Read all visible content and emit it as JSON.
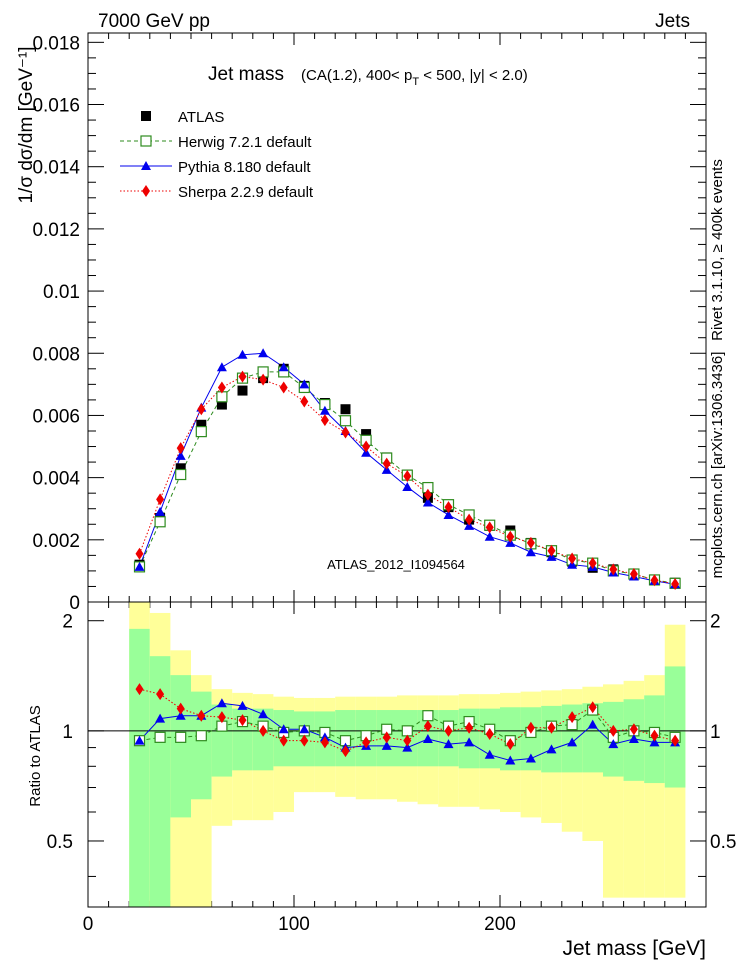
{
  "header": {
    "left": "7000 GeV pp",
    "right": "Jets"
  },
  "side_labels": {
    "rivet": "Rivet 3.1.10, ≥ 400k events",
    "mcplots": "mcplots.cern.ch [arXiv:1306.3436]"
  },
  "colors": {
    "atlas": "#000000",
    "herwig": "#2e8b1e",
    "pythia": "#0000ee",
    "sherpa": "#ee0000",
    "band_1sigma": "#99ff99",
    "band_2sigma": "#ffff99",
    "watermark": "#888888"
  },
  "chart_data": {
    "type": "line",
    "title_main": "Jet mass",
    "title_sub": "(CA(1.2), 400< p",
    "title_sub_T": "T",
    "title_sub_rest": " < 500, |y| < 2.0)",
    "watermark": "ATLAS_2012_I1094564",
    "xlabel": "Jet mass [GeV]",
    "ylabel": "1/σ dσ/dm [GeV⁻¹]",
    "ratio_ylabel": "Ratio to ATLAS",
    "xlim": [
      0,
      300
    ],
    "ylim": [
      0,
      0.0183
    ],
    "ratio_ylim": [
      0.33,
      2.25
    ],
    "x_ticks": [
      "0",
      "100",
      "200"
    ],
    "x_tick_values": [
      0,
      100,
      200
    ],
    "y_ticks": [
      "0",
      "0.002",
      "0.004",
      "0.006",
      "0.008",
      "0.01",
      "0.012",
      "0.014",
      "0.016",
      "0.018"
    ],
    "y_tick_values": [
      0,
      0.002,
      0.004,
      0.006,
      0.008,
      0.01,
      0.012,
      0.014,
      0.016,
      0.018
    ],
    "ratio_ticks": [
      "0.5",
      "1",
      "2"
    ],
    "ratio_tick_values": [
      0.5,
      1,
      2
    ],
    "x": [
      25,
      35,
      45,
      55,
      65,
      75,
      85,
      95,
      105,
      115,
      125,
      135,
      145,
      155,
      165,
      175,
      185,
      195,
      205,
      215,
      225,
      235,
      245,
      255,
      265,
      275,
      285
    ],
    "bin_edges": [
      20,
      30,
      40,
      50,
      60,
      70,
      80,
      90,
      100,
      110,
      120,
      130,
      140,
      150,
      160,
      170,
      180,
      190,
      200,
      210,
      220,
      230,
      240,
      250,
      260,
      270,
      280,
      290
    ],
    "legend": [
      "ATLAS",
      "Herwig 7.2.1 default",
      "Pythia 8.180 default",
      "Sherpa 2.2.9 default"
    ],
    "series": [
      {
        "name": "ATLAS",
        "key": "atlas",
        "marker": "square",
        "values": [
          0.0012,
          0.0027,
          0.0043,
          0.0057,
          0.00635,
          0.0068,
          0.0072,
          0.0075,
          0.00695,
          0.0064,
          0.0062,
          0.0054,
          0.00465,
          0.0041,
          0.00335,
          0.00305,
          0.00265,
          0.00245,
          0.0023,
          0.0019,
          0.0016,
          0.0013,
          0.0011,
          0.00105,
          0.0009,
          0.00072,
          0.00062
        ]
      },
      {
        "name": "Herwig 7.2.1 default",
        "key": "herwig",
        "marker": "open-square",
        "values": [
          0.00113,
          0.00258,
          0.0041,
          0.00548,
          0.0066,
          0.0072,
          0.0074,
          0.0074,
          0.0069,
          0.00635,
          0.00583,
          0.0052,
          0.00463,
          0.00408,
          0.00368,
          0.00313,
          0.0028,
          0.00247,
          0.00215,
          0.00187,
          0.00165,
          0.00135,
          0.00125,
          0.001,
          0.0009,
          0.00071,
          0.0006
        ]
      },
      {
        "name": "Pythia 8.180 default",
        "key": "pythia",
        "marker": "triangle",
        "values": [
          0.00113,
          0.0029,
          0.0047,
          0.00625,
          0.00755,
          0.00795,
          0.008,
          0.00755,
          0.007,
          0.00615,
          0.0055,
          0.0048,
          0.00425,
          0.0037,
          0.0032,
          0.0028,
          0.00245,
          0.0021,
          0.0019,
          0.0016,
          0.00145,
          0.0012,
          0.00113,
          0.00095,
          0.00082,
          0.00068,
          0.00057
        ]
      },
      {
        "name": "Sherpa 2.2.9 default",
        "key": "sherpa",
        "marker": "diamond",
        "values": [
          0.00155,
          0.0033,
          0.00495,
          0.0062,
          0.0069,
          0.00725,
          0.00715,
          0.0069,
          0.00645,
          0.00585,
          0.00545,
          0.005,
          0.00445,
          0.00405,
          0.00345,
          0.00305,
          0.00265,
          0.0024,
          0.0021,
          0.0019,
          0.00165,
          0.0014,
          0.00125,
          0.00105,
          0.0009,
          0.0007,
          0.00058
        ]
      }
    ],
    "ratio_series": [
      {
        "key": "herwig",
        "values": [
          0.94,
          0.96,
          0.96,
          0.97,
          1.03,
          1.06,
          1.03,
          0.99,
          1.0,
          0.99,
          0.94,
          0.97,
          1.01,
          1.0,
          1.1,
          1.03,
          1.06,
          1.01,
          0.94,
          0.99,
          1.03,
          1.04,
          1.14,
          0.96,
          1.0,
          0.99,
          0.96
        ]
      },
      {
        "key": "pythia",
        "values": [
          0.94,
          1.08,
          1.1,
          1.1,
          1.19,
          1.17,
          1.11,
          1.01,
          1.01,
          0.96,
          0.9,
          0.91,
          0.91,
          0.9,
          0.95,
          0.92,
          0.93,
          0.86,
          0.83,
          0.84,
          0.89,
          0.93,
          1.04,
          0.92,
          0.95,
          0.93,
          0.93
        ]
      },
      {
        "key": "sherpa",
        "values": [
          1.3,
          1.26,
          1.15,
          1.1,
          1.09,
          1.07,
          1.0,
          0.94,
          0.94,
          0.93,
          0.88,
          0.93,
          0.96,
          0.94,
          1.03,
          1.0,
          1.02,
          0.98,
          0.92,
          1.02,
          1.02,
          1.09,
          1.16,
          1.0,
          1.01,
          0.97,
          0.94
        ]
      }
    ],
    "band_1sigma": {
      "lo": [
        0.33,
        0.33,
        0.58,
        0.65,
        0.75,
        0.78,
        0.78,
        0.8,
        0.8,
        0.8,
        0.8,
        0.8,
        0.8,
        0.8,
        0.8,
        0.8,
        0.79,
        0.79,
        0.78,
        0.78,
        0.77,
        0.77,
        0.77,
        0.75,
        0.73,
        0.72,
        0.7
      ],
      "hi": [
        1.9,
        1.6,
        1.42,
        1.28,
        1.18,
        1.15,
        1.15,
        1.14,
        1.13,
        1.13,
        1.14,
        1.14,
        1.14,
        1.14,
        1.14,
        1.14,
        1.15,
        1.15,
        1.16,
        1.16,
        1.17,
        1.18,
        1.19,
        1.2,
        1.22,
        1.25,
        1.5
      ]
    },
    "band_2sigma": {
      "lo": [
        0.33,
        0.33,
        0.33,
        0.33,
        0.55,
        0.57,
        0.57,
        0.6,
        0.68,
        0.68,
        0.66,
        0.65,
        0.65,
        0.64,
        0.63,
        0.62,
        0.62,
        0.61,
        0.6,
        0.58,
        0.56,
        0.53,
        0.5,
        0.35,
        0.35,
        0.35,
        0.35
      ]
    },
    "band_2sigma_hi": [
      2.25,
      2.1,
      1.66,
      1.42,
      1.3,
      1.27,
      1.26,
      1.24,
      1.23,
      1.23,
      1.24,
      1.24,
      1.24,
      1.25,
      1.25,
      1.25,
      1.26,
      1.26,
      1.27,
      1.28,
      1.29,
      1.3,
      1.32,
      1.34,
      1.37,
      1.42,
      1.95
    ]
  }
}
